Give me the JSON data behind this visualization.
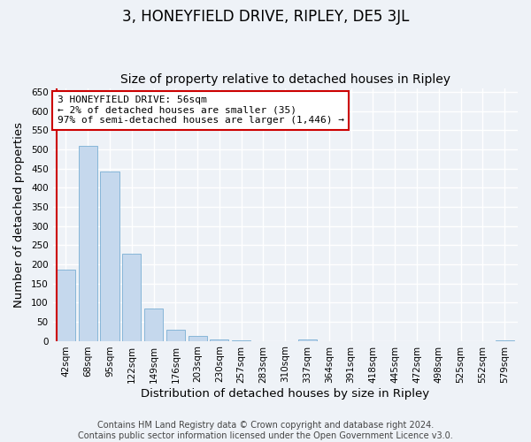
{
  "title": "3, HONEYFIELD DRIVE, RIPLEY, DE5 3JL",
  "subtitle": "Size of property relative to detached houses in Ripley",
  "xlabel": "Distribution of detached houses by size in Ripley",
  "ylabel": "Number of detached properties",
  "bar_labels": [
    "42sqm",
    "68sqm",
    "95sqm",
    "122sqm",
    "149sqm",
    "176sqm",
    "203sqm",
    "230sqm",
    "257sqm",
    "283sqm",
    "310sqm",
    "337sqm",
    "364sqm",
    "391sqm",
    "418sqm",
    "445sqm",
    "472sqm",
    "498sqm",
    "525sqm",
    "552sqm",
    "579sqm"
  ],
  "bar_values": [
    185,
    510,
    443,
    228,
    85,
    29,
    13,
    4,
    2,
    0,
    0,
    3,
    0,
    0,
    0,
    0,
    0,
    0,
    0,
    0,
    2
  ],
  "bar_color": "#c5d8ed",
  "bar_edge_color": "#7aafd4",
  "annotation_title": "3 HONEYFIELD DRIVE: 56sqm",
  "annotation_line2": "← 2% of detached houses are smaller (35)",
  "annotation_line3": "97% of semi-detached houses are larger (1,446) →",
  "annotation_box_color": "#ffffff",
  "annotation_border_color": "#cc0000",
  "marker_line_color": "#cc0000",
  "ylim": [
    0,
    660
  ],
  "yticks": [
    0,
    50,
    100,
    150,
    200,
    250,
    300,
    350,
    400,
    450,
    500,
    550,
    600,
    650
  ],
  "footer_line1": "Contains HM Land Registry data © Crown copyright and database right 2024.",
  "footer_line2": "Contains public sector information licensed under the Open Government Licence v3.0.",
  "background_color": "#eef2f7",
  "grid_color": "#ffffff",
  "title_fontsize": 12,
  "subtitle_fontsize": 10,
  "axis_label_fontsize": 9.5,
  "tick_fontsize": 7.5,
  "annotation_fontsize": 8,
  "footer_fontsize": 7
}
